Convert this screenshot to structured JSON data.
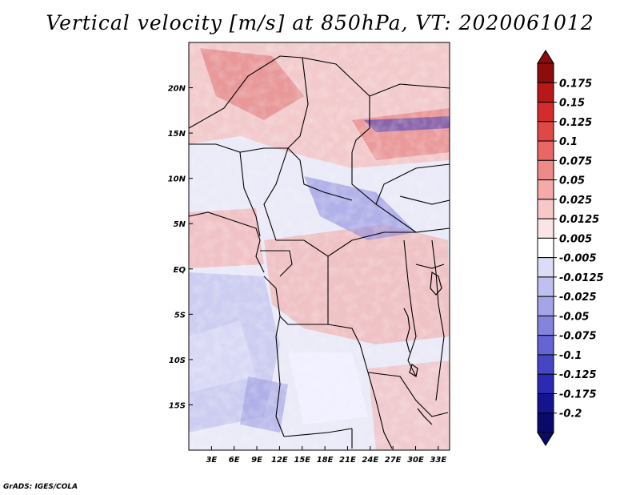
{
  "title": "Vertical velocity [m/s] at 850hPa, VT: 2020061012",
  "footer": "GrADS: IGES/COLA",
  "map": {
    "lon_range": [
      0,
      34.5
    ],
    "lat_range": [
      -20,
      25
    ],
    "lon_tick_labels": [
      "3E",
      "6E",
      "9E",
      "12E",
      "15E",
      "18E",
      "21E",
      "24E",
      "27E",
      "30E",
      "33E"
    ],
    "lat_tick_labels": [
      "20N",
      "15N",
      "10N",
      "5N",
      "EQ",
      "5S",
      "10S",
      "15S"
    ]
  },
  "colorbar": {
    "labels": [
      "0.175",
      "0.15",
      "0.125",
      "0.1",
      "0.075",
      "0.05",
      "0.025",
      "0.0125",
      "0.005",
      "-0.005",
      "-0.0125",
      "-0.025",
      "-0.05",
      "-0.075",
      "-0.1",
      "-0.125",
      "-0.175",
      "-0.2"
    ],
    "colors": [
      "#8b0d0d",
      "#b81818",
      "#d42c2c",
      "#e04848",
      "#e86868",
      "#ee8a8a",
      "#f4aaaa",
      "#f8c8c8",
      "#fbe4e4",
      "#ffffff",
      "#dcdcf6",
      "#c0c0ee",
      "#a4a4e6",
      "#8484dc",
      "#6464d2",
      "#4646c4",
      "#2a2ab4",
      "#14148e",
      "#0a0a6a"
    ]
  }
}
